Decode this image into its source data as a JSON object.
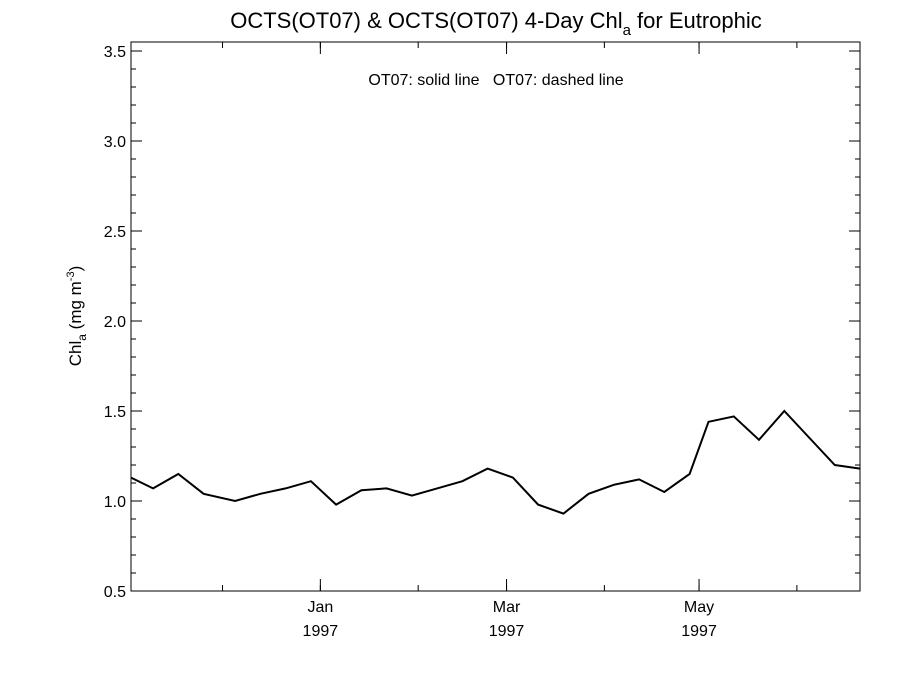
{
  "chart_data": {
    "type": "line",
    "title": {
      "main": "OCTS(OT07) & OCTS(OT07) 4-Day Chl",
      "subscript": "a",
      "tail": " for Eutrophic"
    },
    "annotation": "OT07: solid line   OT07: dashed line",
    "ylabel": {
      "main": "Chl",
      "subscript": "a",
      "unit": " (mg m",
      "superscript": "-3",
      "close": ")"
    },
    "ylim": [
      0.5,
      3.55
    ],
    "yticks": [
      "0.5",
      "1.0",
      "1.5",
      "2.0",
      "2.5",
      "3.0",
      "3.5"
    ],
    "ytick_values": [
      0.5,
      1.0,
      1.5,
      2.0,
      2.5,
      3.0,
      3.5
    ],
    "yminor_step": 0.1,
    "xlim": [
      "1996-11-02",
      "1997-06-21"
    ],
    "xticks": [
      {
        "date": "1997-01-01",
        "month": "Jan",
        "year": "1997"
      },
      {
        "date": "1997-03-01",
        "month": "Mar",
        "year": "1997"
      },
      {
        "date": "1997-05-01",
        "month": "May",
        "year": "1997"
      }
    ],
    "x_month_starts": [
      "1996-12-01",
      "1997-01-01",
      "1997-02-01",
      "1997-03-01",
      "1997-04-01",
      "1997-05-01",
      "1997-06-01"
    ],
    "series": [
      {
        "style": "solid",
        "x": [
          "1996-11-02",
          "1996-11-09",
          "1996-11-17",
          "1996-11-25",
          "1996-12-05",
          "1996-12-13",
          "1996-12-21",
          "1996-12-29",
          "1997-01-06",
          "1997-01-14",
          "1997-01-22",
          "1997-01-30",
          "1997-02-07",
          "1997-02-15",
          "1997-02-23",
          "1997-03-03",
          "1997-03-11",
          "1997-03-19",
          "1997-03-27",
          "1997-04-04",
          "1997-04-12",
          "1997-04-20",
          "1997-04-28",
          "1997-05-04",
          "1997-05-12",
          "1997-05-20",
          "1997-05-28",
          "1997-06-05",
          "1997-06-13",
          "1997-06-21"
        ],
        "values": [
          1.13,
          1.07,
          1.15,
          1.04,
          1.0,
          1.04,
          1.07,
          1.11,
          0.98,
          1.06,
          1.07,
          1.03,
          1.07,
          1.11,
          1.18,
          1.13,
          0.98,
          0.93,
          1.04,
          1.09,
          1.12,
          1.05,
          1.15,
          1.44,
          1.47,
          1.34,
          1.5,
          1.35,
          1.2,
          1.18
        ]
      }
    ]
  }
}
